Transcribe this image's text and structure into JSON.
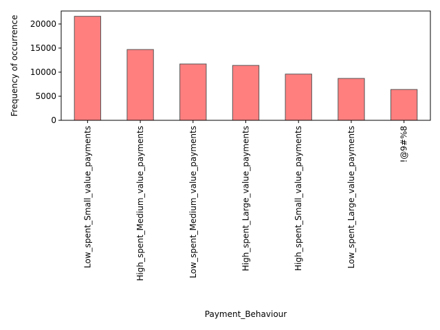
{
  "chart_data": {
    "type": "bar",
    "categories": [
      "Low_spent_Small_value_payments",
      "High_spent_Medium_value_payments",
      "Low_spent_Medium_value_payments",
      "High_spent_Large_value_payments",
      "High_spent_Small_value_payments",
      "Low_spent_Large_value_payments",
      "!@9#%8"
    ],
    "values": [
      21600,
      14700,
      11700,
      11400,
      9600,
      8700,
      6400
    ],
    "xlabel": "Payment_Behaviour",
    "ylabel": "Frequency of occurrence",
    "ylim": [
      0,
      22700
    ],
    "yticks": [
      0,
      5000,
      10000,
      15000,
      20000
    ],
    "ytick_labels": [
      "0",
      "5000",
      "10000",
      "15000",
      "20000"
    ],
    "grid": false,
    "legend": "none",
    "bar_color": "#ff7f7f",
    "bar_edge_color": "#555555"
  }
}
